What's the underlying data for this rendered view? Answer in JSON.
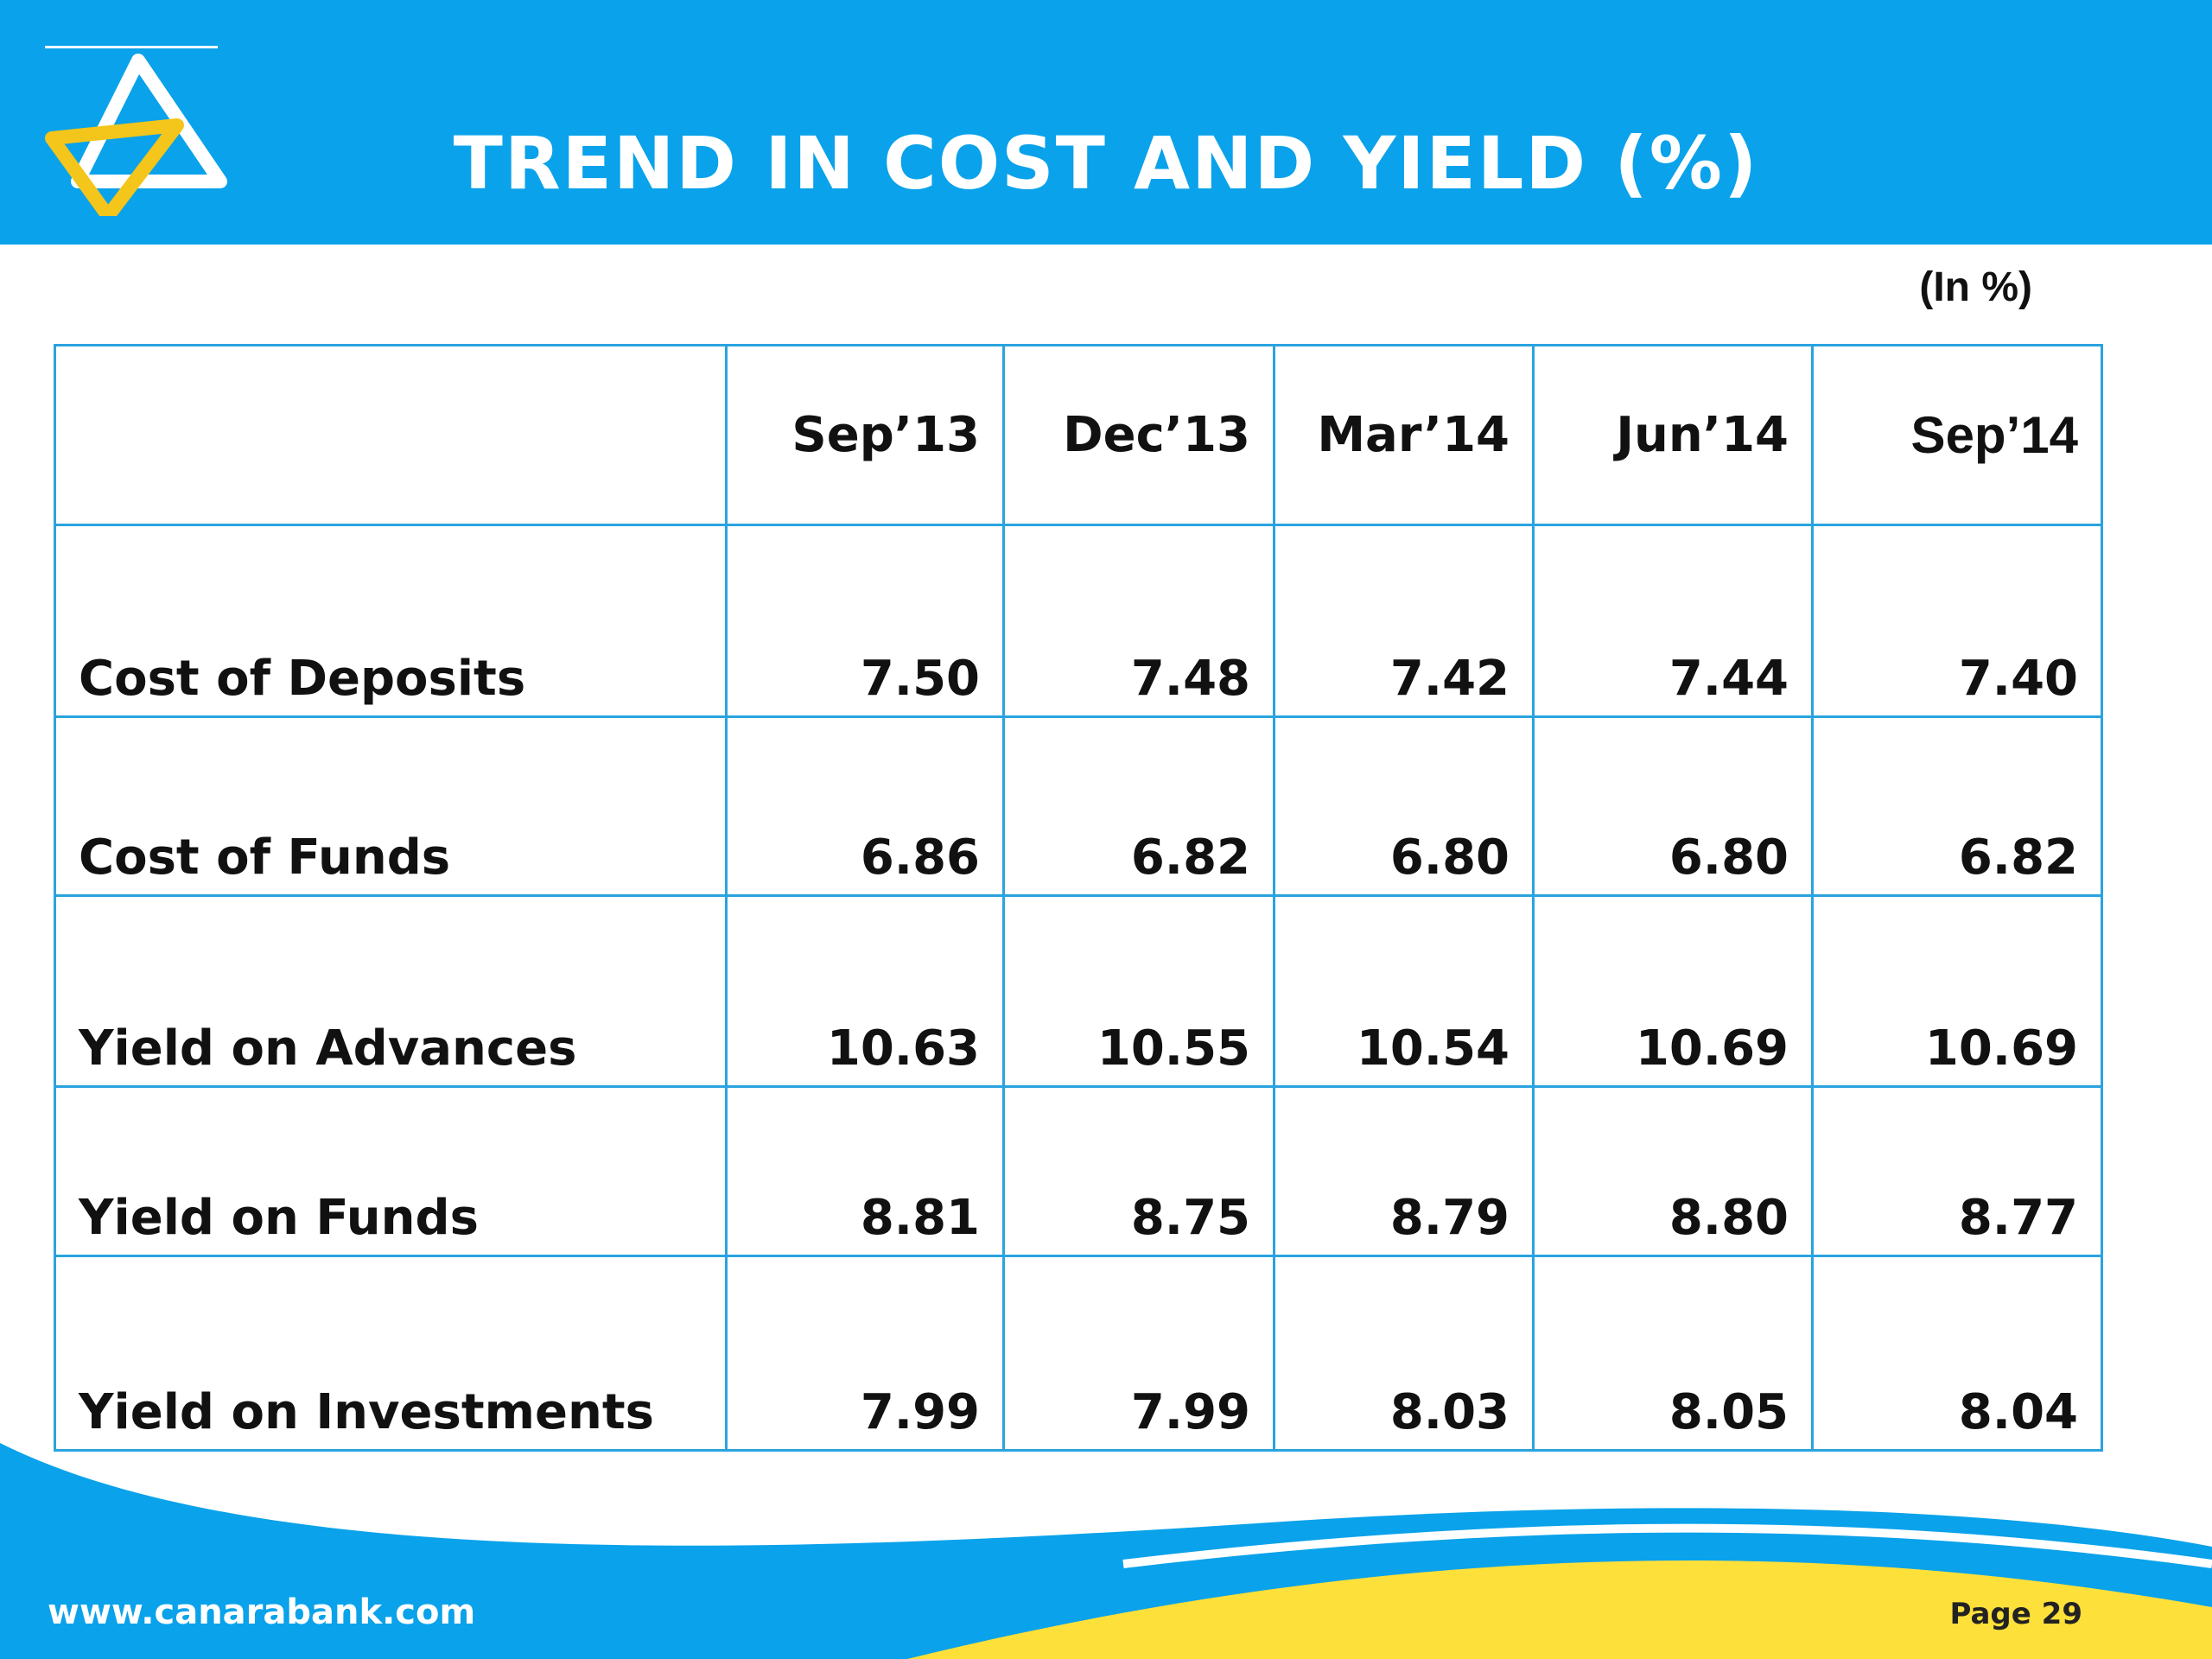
{
  "slide": {
    "title": "TREND IN COST AND YIELD (%)",
    "unit_note": "(In %)",
    "website": "www.canarabank.com",
    "page_label": "Page",
    "page_number": "29"
  },
  "colors": {
    "header_blue": "#0aa2ea",
    "border_blue": "#2aa3df",
    "logo_yellow": "#f4c51a",
    "footer_yellow": "#fde03a"
  },
  "icons": {
    "logo": "canara-bank-logo-icon"
  },
  "table": {
    "columns": [
      "",
      "Sep’13",
      "Dec’13",
      "Mar’14",
      "Jun’14",
      "Sep’14"
    ],
    "rows": [
      {
        "label": "Cost of Deposits",
        "values": [
          "7.50",
          "7.48",
          "7.42",
          "7.44",
          "7.40"
        ]
      },
      {
        "label": "Cost of Funds",
        "values": [
          "6.86",
          "6.82",
          "6.80",
          "6.80",
          "6.82"
        ]
      },
      {
        "label": "Yield on Advances",
        "values": [
          "10.63",
          "10.55",
          "10.54",
          "10.69",
          "10.69"
        ]
      },
      {
        "label": "Yield on Funds",
        "values": [
          "8.81",
          "8.75",
          "8.79",
          "8.80",
          "8.77"
        ]
      },
      {
        "label": "Yield on Investments",
        "values": [
          "7.99",
          "7.99",
          "8.03",
          "8.05",
          "8.04"
        ]
      }
    ]
  }
}
